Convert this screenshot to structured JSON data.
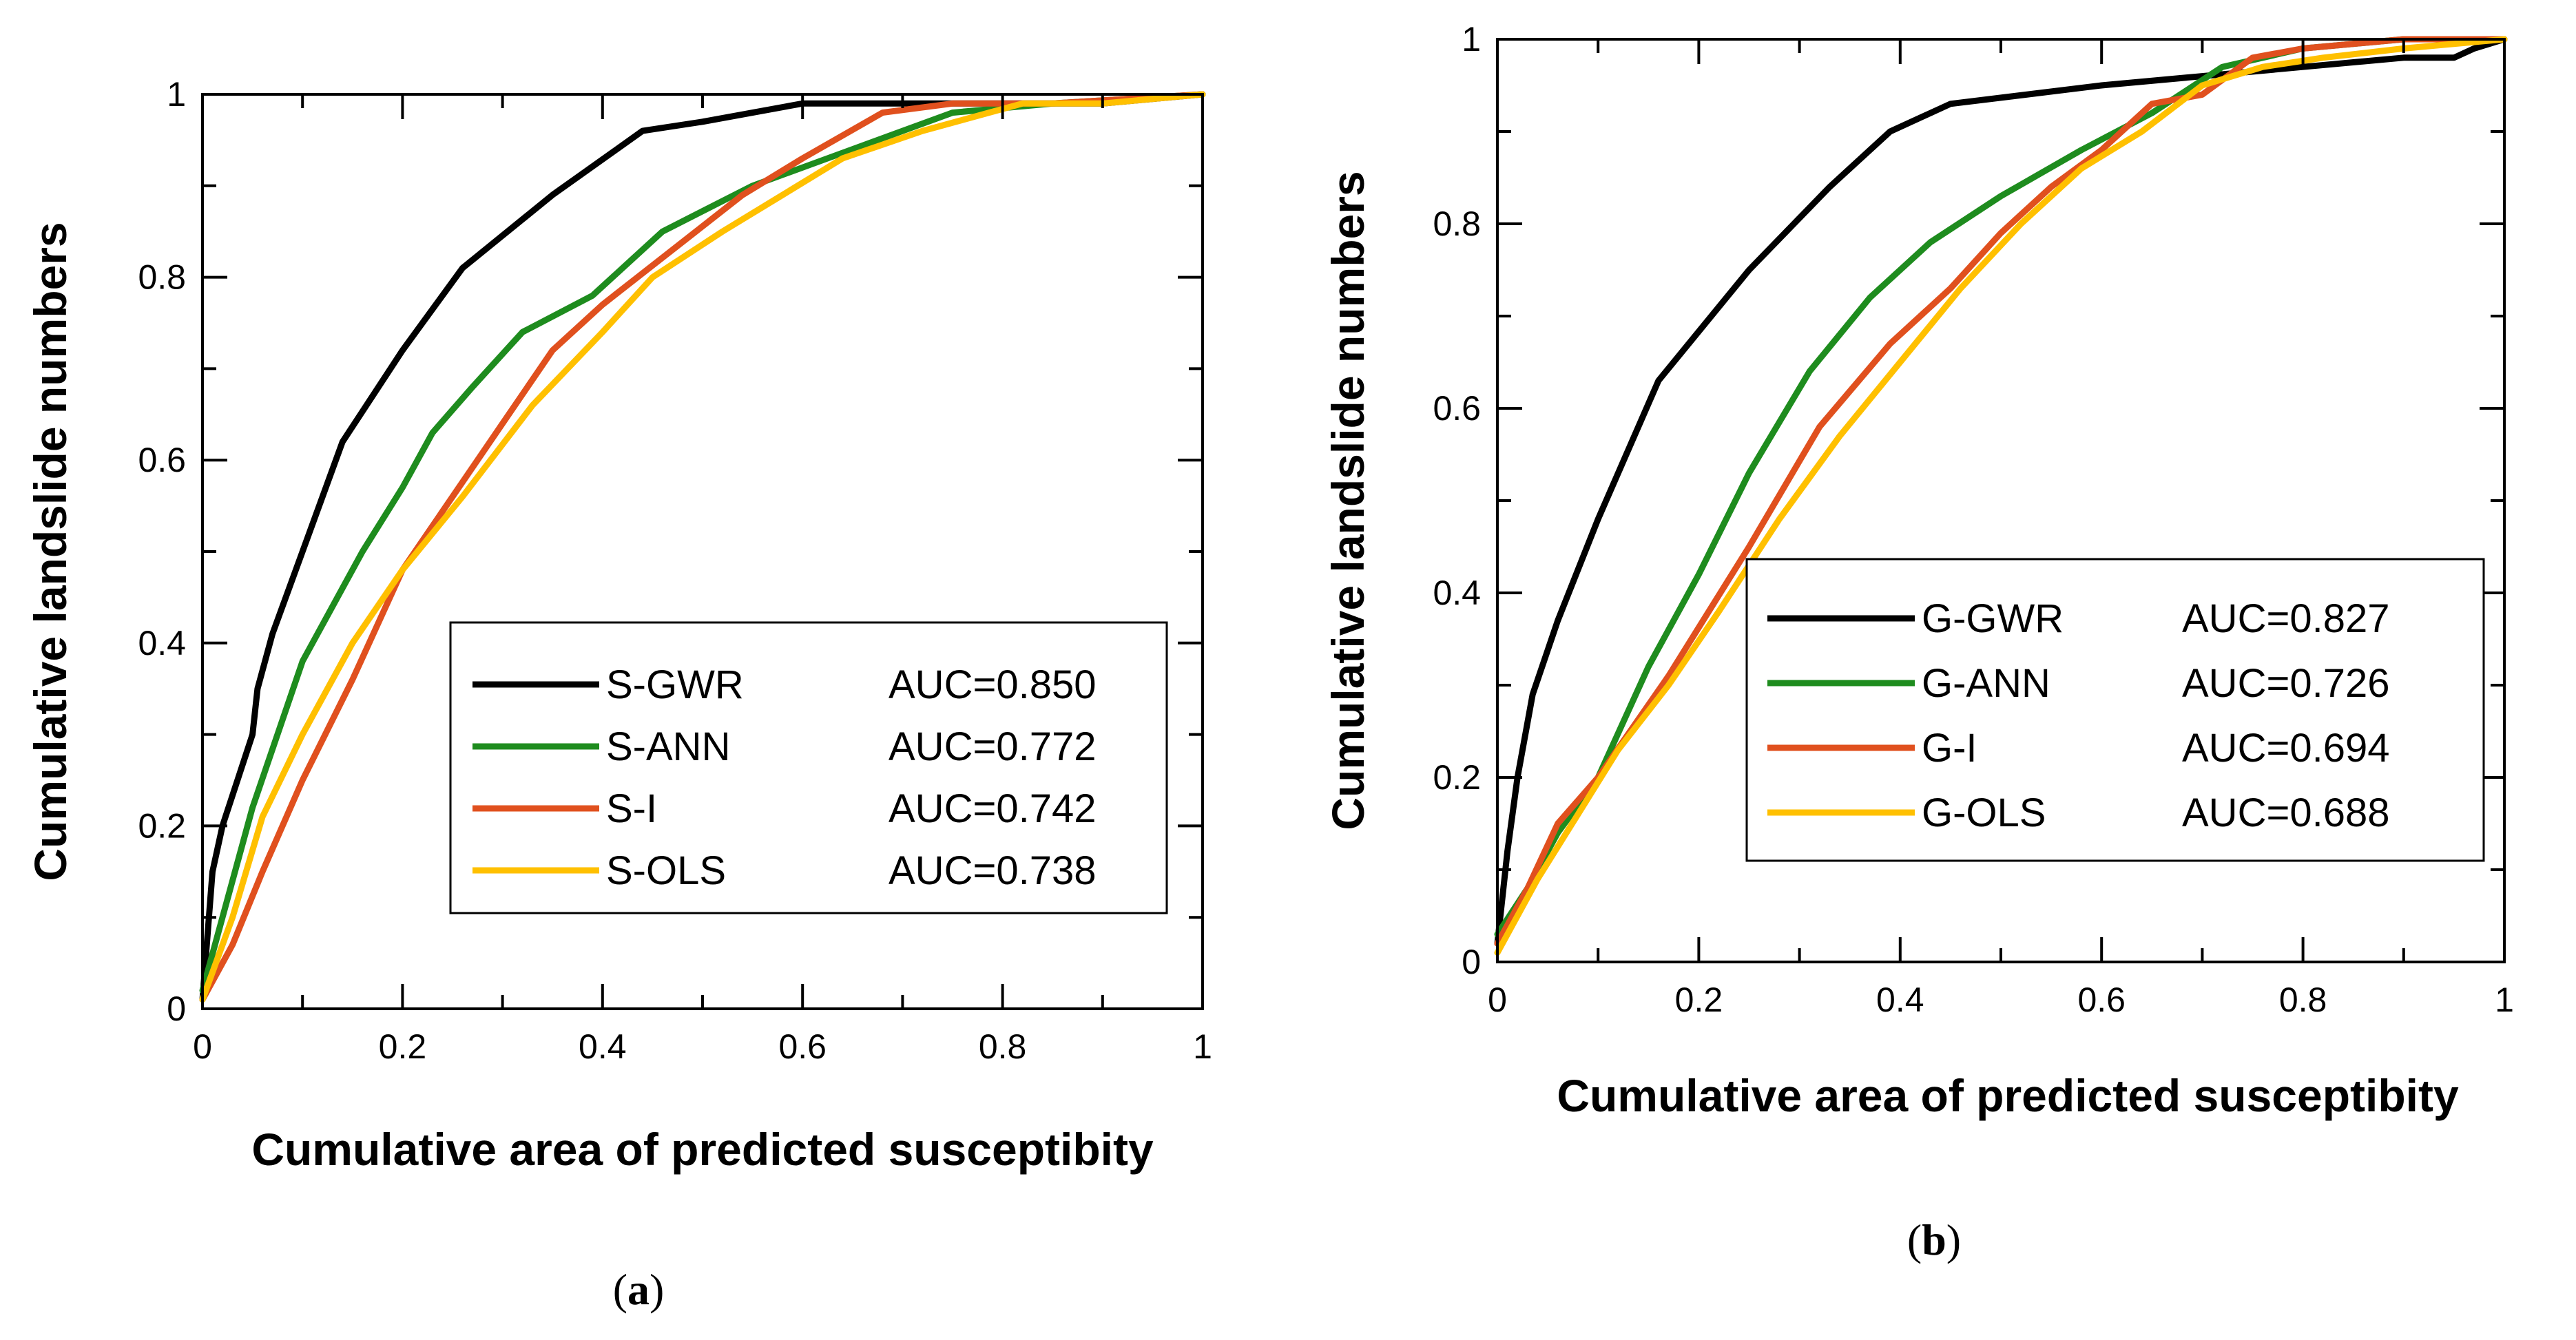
{
  "colors": {
    "gwr": "#000000",
    "ann": "#1e8c1e",
    "i": "#e0501e",
    "ols": "#ffc000"
  },
  "chart_data": [
    {
      "type": "line",
      "panel": "(a)",
      "panel_open": "(",
      "panel_letter": "a",
      "panel_close": ")",
      "title": "",
      "xlabel": "Cumulative area of predicted susceptibity",
      "ylabel": "Cumulative landslide numbers",
      "xlim": [
        0,
        1
      ],
      "ylim": [
        0,
        1
      ],
      "xticks": [
        "0",
        "0.2",
        "0.4",
        "0.6",
        "0.8",
        "1"
      ],
      "yticks": [
        "0",
        "0.2",
        "0.4",
        "0.6",
        "0.8",
        "1"
      ],
      "grid": false,
      "legend_position": "bottom-right",
      "series": [
        {
          "name": "S-GWR",
          "auc": "AUC=0.850",
          "color_key": "gwr",
          "points": [
            [
              0,
              0.01
            ],
            [
              0.01,
              0.15
            ],
            [
              0.02,
              0.2
            ],
            [
              0.035,
              0.25
            ],
            [
              0.05,
              0.3
            ],
            [
              0.055,
              0.35
            ],
            [
              0.07,
              0.41
            ],
            [
              0.1,
              0.5
            ],
            [
              0.14,
              0.62
            ],
            [
              0.2,
              0.72
            ],
            [
              0.26,
              0.81
            ],
            [
              0.35,
              0.89
            ],
            [
              0.44,
              0.96
            ],
            [
              0.5,
              0.97
            ],
            [
              0.6,
              0.99
            ],
            [
              0.7,
              0.99
            ],
            [
              0.8,
              0.99
            ],
            [
              0.9,
              0.99
            ],
            [
              1.0,
              1.0
            ]
          ]
        },
        {
          "name": "S-ANN",
          "auc": "AUC=0.772",
          "color_key": "ann",
          "points": [
            [
              0,
              0.02
            ],
            [
              0.02,
              0.1
            ],
            [
              0.05,
              0.22
            ],
            [
              0.1,
              0.38
            ],
            [
              0.16,
              0.5
            ],
            [
              0.2,
              0.57
            ],
            [
              0.23,
              0.63
            ],
            [
              0.27,
              0.68
            ],
            [
              0.32,
              0.74
            ],
            [
              0.39,
              0.78
            ],
            [
              0.46,
              0.85
            ],
            [
              0.55,
              0.9
            ],
            [
              0.65,
              0.94
            ],
            [
              0.75,
              0.98
            ],
            [
              0.85,
              0.99
            ],
            [
              1.0,
              1.0
            ]
          ]
        },
        {
          "name": "S-I",
          "auc": "AUC=0.742",
          "color_key": "i",
          "points": [
            [
              0,
              0.01
            ],
            [
              0.03,
              0.07
            ],
            [
              0.06,
              0.15
            ],
            [
              0.1,
              0.25
            ],
            [
              0.15,
              0.36
            ],
            [
              0.2,
              0.48
            ],
            [
              0.25,
              0.56
            ],
            [
              0.3,
              0.64
            ],
            [
              0.35,
              0.72
            ],
            [
              0.4,
              0.77
            ],
            [
              0.47,
              0.83
            ],
            [
              0.54,
              0.89
            ],
            [
              0.6,
              0.93
            ],
            [
              0.68,
              0.98
            ],
            [
              0.75,
              0.99
            ],
            [
              0.85,
              0.99
            ],
            [
              1.0,
              1.0
            ]
          ]
        },
        {
          "name": "S-OLS",
          "auc": "AUC=0.738",
          "color_key": "ols",
          "points": [
            [
              0,
              0.01
            ],
            [
              0.03,
              0.1
            ],
            [
              0.06,
              0.21
            ],
            [
              0.1,
              0.3
            ],
            [
              0.15,
              0.4
            ],
            [
              0.2,
              0.48
            ],
            [
              0.26,
              0.56
            ],
            [
              0.33,
              0.66
            ],
            [
              0.4,
              0.74
            ],
            [
              0.45,
              0.8
            ],
            [
              0.52,
              0.85
            ],
            [
              0.58,
              0.89
            ],
            [
              0.64,
              0.93
            ],
            [
              0.72,
              0.96
            ],
            [
              0.82,
              0.99
            ],
            [
              0.9,
              0.99
            ],
            [
              1.0,
              1.0
            ]
          ]
        }
      ]
    },
    {
      "type": "line",
      "panel": "(b)",
      "panel_open": "(",
      "panel_letter": "b",
      "panel_close": ")",
      "title": "",
      "xlabel": "Cumulative area of predicted susceptibity",
      "ylabel": "Cumulative landslide numbers",
      "xlim": [
        0,
        1
      ],
      "ylim": [
        0,
        1
      ],
      "xticks": [
        "0",
        "0.2",
        "0.4",
        "0.6",
        "0.8",
        "1"
      ],
      "yticks": [
        "0",
        "0.2",
        "0.4",
        "0.6",
        "0.8",
        "1"
      ],
      "grid": false,
      "legend_position": "center-right",
      "series": [
        {
          "name": "G-GWR",
          "auc": "AUC=0.827",
          "color_key": "gwr",
          "points": [
            [
              0,
              0.02
            ],
            [
              0.01,
              0.12
            ],
            [
              0.02,
              0.2
            ],
            [
              0.035,
              0.29
            ],
            [
              0.06,
              0.37
            ],
            [
              0.1,
              0.48
            ],
            [
              0.16,
              0.63
            ],
            [
              0.25,
              0.75
            ],
            [
              0.33,
              0.84
            ],
            [
              0.39,
              0.9
            ],
            [
              0.45,
              0.93
            ],
            [
              0.6,
              0.95
            ],
            [
              0.7,
              0.96
            ],
            [
              0.8,
              0.97
            ],
            [
              0.9,
              0.98
            ],
            [
              0.95,
              0.98
            ],
            [
              0.97,
              0.99
            ],
            [
              1.0,
              1.0
            ]
          ]
        },
        {
          "name": "G-ANN",
          "auc": "AUC=0.726",
          "color_key": "ann",
          "points": [
            [
              0,
              0.03
            ],
            [
              0.03,
              0.08
            ],
            [
              0.06,
              0.14
            ],
            [
              0.1,
              0.2
            ],
            [
              0.15,
              0.32
            ],
            [
              0.2,
              0.42
            ],
            [
              0.25,
              0.53
            ],
            [
              0.31,
              0.64
            ],
            [
              0.37,
              0.72
            ],
            [
              0.43,
              0.78
            ],
            [
              0.5,
              0.83
            ],
            [
              0.58,
              0.88
            ],
            [
              0.65,
              0.92
            ],
            [
              0.72,
              0.97
            ],
            [
              0.8,
              0.99
            ],
            [
              0.9,
              1.0
            ],
            [
              1.0,
              1.0
            ]
          ]
        },
        {
          "name": "G-I",
          "auc": "AUC=0.694",
          "color_key": "i",
          "points": [
            [
              0,
              0.02
            ],
            [
              0.03,
              0.08
            ],
            [
              0.06,
              0.15
            ],
            [
              0.1,
              0.2
            ],
            [
              0.17,
              0.31
            ],
            [
              0.25,
              0.45
            ],
            [
              0.32,
              0.58
            ],
            [
              0.39,
              0.67
            ],
            [
              0.45,
              0.73
            ],
            [
              0.5,
              0.79
            ],
            [
              0.55,
              0.84
            ],
            [
              0.6,
              0.88
            ],
            [
              0.65,
              0.93
            ],
            [
              0.7,
              0.94
            ],
            [
              0.75,
              0.98
            ],
            [
              0.8,
              0.99
            ],
            [
              0.9,
              1.0
            ],
            [
              1.0,
              1.0
            ]
          ]
        },
        {
          "name": "G-OLS",
          "auc": "AUC=0.688",
          "color_key": "ols",
          "points": [
            [
              0,
              0.01
            ],
            [
              0.04,
              0.09
            ],
            [
              0.08,
              0.16
            ],
            [
              0.12,
              0.23
            ],
            [
              0.17,
              0.3
            ],
            [
              0.22,
              0.38
            ],
            [
              0.28,
              0.48
            ],
            [
              0.34,
              0.57
            ],
            [
              0.4,
              0.65
            ],
            [
              0.46,
              0.73
            ],
            [
              0.52,
              0.8
            ],
            [
              0.58,
              0.86
            ],
            [
              0.64,
              0.9
            ],
            [
              0.7,
              0.95
            ],
            [
              0.76,
              0.97
            ],
            [
              0.82,
              0.98
            ],
            [
              0.9,
              0.99
            ],
            [
              1.0,
              1.0
            ]
          ]
        }
      ]
    }
  ]
}
